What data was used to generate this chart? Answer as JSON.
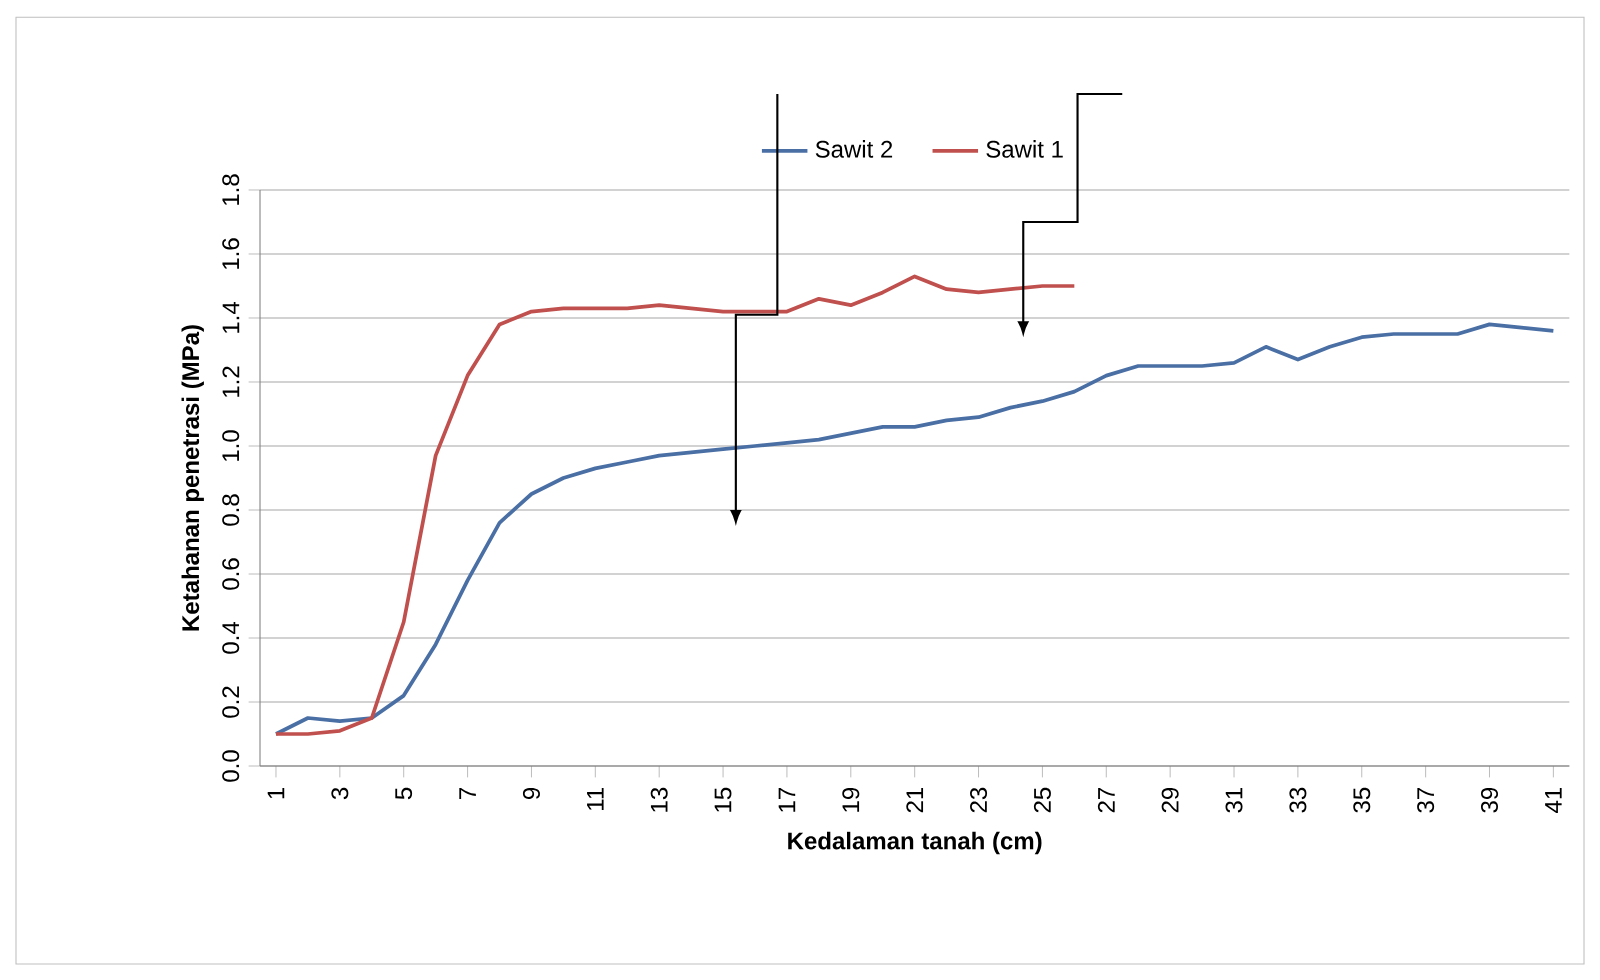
{
  "chart_data": {
    "type": "line",
    "xlabel": "Kedalaman tanah (cm)",
    "ylabel": "Ketahanan penetrasi (MPa)",
    "xlim": [
      0.5,
      41.5
    ],
    "xticks": [
      1,
      3,
      5,
      7,
      9,
      11,
      13,
      15,
      17,
      19,
      21,
      23,
      25,
      27,
      29,
      31,
      33,
      35,
      37,
      39,
      41
    ],
    "ylim": [
      0,
      1.8
    ],
    "yticks": [
      {
        "value": 0,
        "label": "0.0"
      },
      0.2,
      0.4,
      0.6,
      0.8,
      {
        "value": 1,
        "label": "1.0"
      },
      1.2,
      1.4,
      1.6,
      1.8
    ],
    "grid": "y",
    "legend": "top",
    "marker": "none",
    "line_style": "solid",
    "series": [
      {
        "name": "Sawit 2",
        "color": "#4a6fa5",
        "x": [
          1,
          2,
          3,
          4,
          5,
          6,
          7,
          8,
          9,
          10,
          11,
          12,
          13,
          14,
          15,
          16,
          17,
          18,
          19,
          20,
          21,
          22,
          23,
          24,
          25,
          26,
          27,
          28,
          29,
          30,
          31,
          32,
          33,
          34,
          35,
          36,
          37,
          38,
          39,
          40,
          41
        ],
        "values": [
          0.1,
          0.15,
          0.14,
          0.15,
          0.22,
          0.38,
          0.58,
          0.76,
          0.85,
          0.9,
          0.93,
          0.95,
          0.97,
          0.98,
          0.99,
          1.0,
          1.01,
          1.02,
          1.04,
          1.06,
          1.06,
          1.08,
          1.09,
          1.12,
          1.14,
          1.17,
          1.22,
          1.25,
          1.25,
          1.25,
          1.26,
          1.31,
          1.27,
          1.31,
          1.34,
          1.35,
          1.35,
          1.35,
          1.38,
          1.37,
          1.36
        ]
      },
      {
        "name": "Sawit 1",
        "color": "#c0504d",
        "x": [
          1,
          2,
          3,
          4,
          5,
          6,
          7,
          8,
          9,
          10,
          11,
          12,
          13,
          14,
          15,
          16,
          17,
          18,
          19,
          20,
          21,
          22,
          23,
          24,
          25,
          26
        ],
        "values": [
          0.1,
          0.1,
          0.11,
          0.15,
          0.45,
          0.97,
          1.22,
          1.38,
          1.42,
          1.43,
          1.43,
          1.43,
          1.44,
          1.43,
          1.42,
          1.42,
          1.42,
          1.46,
          1.44,
          1.48,
          1.53,
          1.49,
          1.48,
          1.49,
          1.5,
          1.5
        ]
      }
    ]
  }
}
